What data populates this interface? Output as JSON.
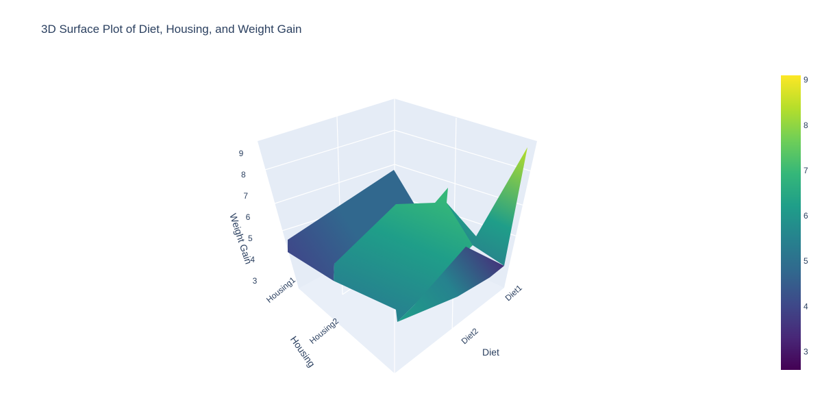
{
  "chart_data": {
    "type": "surface",
    "title": "3D Surface Plot of Diet, Housing, and Weight Gain",
    "x_axis": {
      "title": "Diet",
      "categories": [
        "Diet1",
        "Diet2"
      ]
    },
    "y_axis": {
      "title": "Housing",
      "categories": [
        "Housing1",
        "Housing2"
      ]
    },
    "z_axis": {
      "title": "Weight Gain",
      "ticks": [
        3,
        4,
        5,
        6,
        7,
        8,
        9
      ],
      "range": [
        3,
        9
      ]
    },
    "colorscale": "Viridis",
    "colorbar": {
      "ticks": [
        3,
        4,
        5,
        6,
        7,
        8,
        9
      ],
      "range": [
        2.6,
        9.1
      ]
    },
    "colors": {
      "scene_bg": "#e5ecf6",
      "grid": "#ffffff",
      "text": "#2a3f5f",
      "viridis": [
        "#440154",
        "#482878",
        "#3e4989",
        "#31688e",
        "#26828e",
        "#1f9e89",
        "#35b779",
        "#6ece58",
        "#b5de2b",
        "#fde725"
      ]
    }
  }
}
